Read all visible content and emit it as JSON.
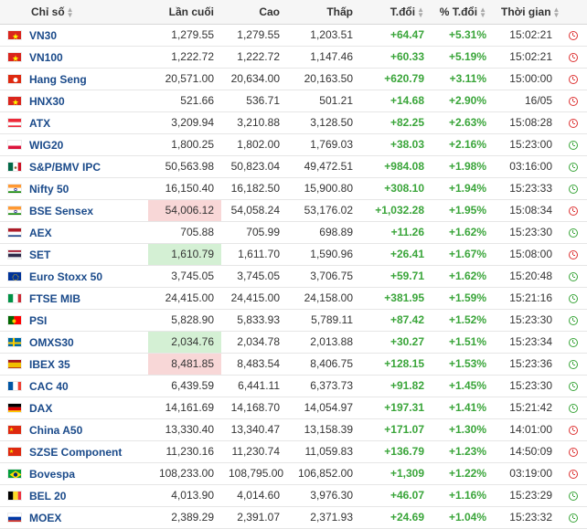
{
  "header": {
    "name": "Chỉ số",
    "last": "Lần cuối",
    "high": "Cao",
    "low": "Thấp",
    "change": "T.đổi",
    "change_pct": "% T.đổi",
    "time": "Thời gian"
  },
  "rows": [
    {
      "name": "VN30",
      "flag": "vn",
      "last": "1,279.55",
      "high": "1,279.55",
      "low": "1,203.51",
      "chg": "+64.47",
      "pct": "+5.31%",
      "time": "15:02:21",
      "status": "closed",
      "hl": ""
    },
    {
      "name": "VN100",
      "flag": "vn",
      "last": "1,222.72",
      "high": "1,222.72",
      "low": "1,147.46",
      "chg": "+60.33",
      "pct": "+5.19%",
      "time": "15:02:21",
      "status": "closed",
      "hl": ""
    },
    {
      "name": "Hang Seng",
      "flag": "hk",
      "last": "20,571.00",
      "high": "20,634.00",
      "low": "20,163.50",
      "chg": "+620.79",
      "pct": "+3.11%",
      "time": "15:00:00",
      "status": "closed",
      "hl": ""
    },
    {
      "name": "HNX30",
      "flag": "vn",
      "last": "521.66",
      "high": "536.71",
      "low": "501.21",
      "chg": "+14.68",
      "pct": "+2.90%",
      "time": "16/05",
      "status": "closed",
      "hl": ""
    },
    {
      "name": "ATX",
      "flag": "at",
      "last": "3,209.94",
      "high": "3,210.88",
      "low": "3,128.50",
      "chg": "+82.25",
      "pct": "+2.63%",
      "time": "15:08:28",
      "status": "closed",
      "hl": ""
    },
    {
      "name": "WIG20",
      "flag": "pl",
      "last": "1,800.25",
      "high": "1,802.00",
      "low": "1,769.03",
      "chg": "+38.03",
      "pct": "+2.16%",
      "time": "15:23:00",
      "status": "open",
      "hl": ""
    },
    {
      "name": "S&P/BMV IPC",
      "flag": "mx",
      "last": "50,563.98",
      "high": "50,823.04",
      "low": "49,472.51",
      "chg": "+984.08",
      "pct": "+1.98%",
      "time": "03:16:00",
      "status": "open",
      "hl": ""
    },
    {
      "name": "Nifty 50",
      "flag": "in",
      "last": "16,150.40",
      "high": "16,182.50",
      "low": "15,900.80",
      "chg": "+308.10",
      "pct": "+1.94%",
      "time": "15:23:33",
      "status": "open",
      "hl": ""
    },
    {
      "name": "BSE Sensex",
      "flag": "in",
      "last": "54,006.12",
      "high": "54,058.24",
      "low": "53,176.02",
      "chg": "+1,032.28",
      "pct": "+1.95%",
      "time": "15:08:34",
      "status": "closed",
      "hl": "red"
    },
    {
      "name": "AEX",
      "flag": "nl",
      "last": "705.88",
      "high": "705.99",
      "low": "698.89",
      "chg": "+11.26",
      "pct": "+1.62%",
      "time": "15:23:30",
      "status": "open",
      "hl": ""
    },
    {
      "name": "SET",
      "flag": "th",
      "last": "1,610.79",
      "high": "1,611.70",
      "low": "1,590.96",
      "chg": "+26.41",
      "pct": "+1.67%",
      "time": "15:08:00",
      "status": "closed",
      "hl": "green"
    },
    {
      "name": "Euro Stoxx 50",
      "flag": "eu",
      "last": "3,745.05",
      "high": "3,745.05",
      "low": "3,706.75",
      "chg": "+59.71",
      "pct": "+1.62%",
      "time": "15:20:48",
      "status": "open",
      "hl": ""
    },
    {
      "name": "FTSE MIB",
      "flag": "it",
      "last": "24,415.00",
      "high": "24,415.00",
      "low": "24,158.00",
      "chg": "+381.95",
      "pct": "+1.59%",
      "time": "15:21:16",
      "status": "open",
      "hl": ""
    },
    {
      "name": "PSI",
      "flag": "pt",
      "last": "5,828.90",
      "high": "5,833.93",
      "low": "5,789.11",
      "chg": "+87.42",
      "pct": "+1.52%",
      "time": "15:23:30",
      "status": "open",
      "hl": ""
    },
    {
      "name": "OMXS30",
      "flag": "se",
      "last": "2,034.76",
      "high": "2,034.78",
      "low": "2,013.88",
      "chg": "+30.27",
      "pct": "+1.51%",
      "time": "15:23:34",
      "status": "open",
      "hl": "green"
    },
    {
      "name": "IBEX 35",
      "flag": "es",
      "last": "8,481.85",
      "high": "8,483.54",
      "low": "8,406.75",
      "chg": "+128.15",
      "pct": "+1.53%",
      "time": "15:23:36",
      "status": "open",
      "hl": "red"
    },
    {
      "name": "CAC 40",
      "flag": "fr",
      "last": "6,439.59",
      "high": "6,441.11",
      "low": "6,373.73",
      "chg": "+91.82",
      "pct": "+1.45%",
      "time": "15:23:30",
      "status": "open",
      "hl": ""
    },
    {
      "name": "DAX",
      "flag": "de",
      "last": "14,161.69",
      "high": "14,168.70",
      "low": "14,054.97",
      "chg": "+197.31",
      "pct": "+1.41%",
      "time": "15:21:42",
      "status": "open",
      "hl": ""
    },
    {
      "name": "China A50",
      "flag": "cn",
      "last": "13,330.40",
      "high": "13,340.47",
      "low": "13,158.39",
      "chg": "+171.07",
      "pct": "+1.30%",
      "time": "14:01:00",
      "status": "closed",
      "hl": ""
    },
    {
      "name": "SZSE Component",
      "flag": "cn",
      "last": "11,230.16",
      "high": "11,230.74",
      "low": "11,059.83",
      "chg": "+136.79",
      "pct": "+1.23%",
      "time": "14:50:09",
      "status": "closed",
      "hl": ""
    },
    {
      "name": "Bovespa",
      "flag": "br",
      "last": "108,233.00",
      "high": "108,795.00",
      "low": "106,852.00",
      "chg": "+1,309",
      "pct": "+1.22%",
      "time": "03:19:00",
      "status": "closed",
      "hl": ""
    },
    {
      "name": "BEL 20",
      "flag": "be",
      "last": "4,013.90",
      "high": "4,014.60",
      "low": "3,976.30",
      "chg": "+46.07",
      "pct": "+1.16%",
      "time": "15:23:29",
      "status": "open",
      "hl": ""
    },
    {
      "name": "MOEX",
      "flag": "ru",
      "last": "2,389.29",
      "high": "2,391.07",
      "low": "2,371.93",
      "chg": "+24.69",
      "pct": "+1.04%",
      "time": "15:23:32",
      "status": "open",
      "hl": ""
    }
  ],
  "colors": {
    "up": "#3aa53a",
    "closed": "#d33",
    "open": "#3aa53a",
    "link": "#1a4a8a",
    "hl_red": "#f8d7d7",
    "hl_green": "#d4f0d4"
  }
}
